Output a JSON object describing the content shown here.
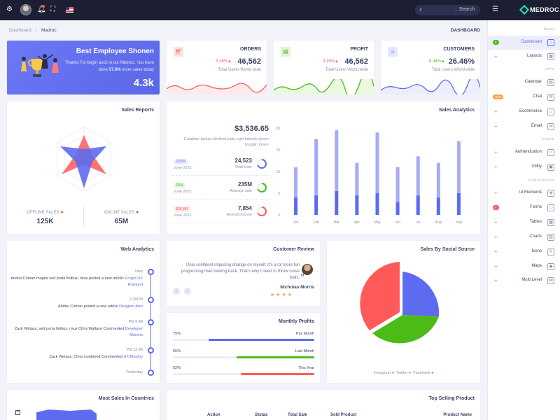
{
  "topbar": {
    "icons": [
      "gear-icon",
      "bell-icon",
      "fullscreen-icon",
      "menu-icon",
      "search-icon"
    ],
    "search_placeholder": "...Search",
    "brand": "MEDROC"
  },
  "sidebar": {
    "sections": {
      "menu": "MENU",
      "apps": "APPS",
      "pages": "PAGES",
      "components": "COMPONENTS"
    },
    "items": [
      {
        "label": "Dashboard",
        "badge": "5",
        "badge_color": "#4cbb17",
        "active": true
      },
      {
        "label": "Layouts"
      },
      {
        "label": "Calendar"
      },
      {
        "label": "Chat",
        "badge": "New",
        "badge_color": "#f7a33b"
      },
      {
        "label": "Ecommerce"
      },
      {
        "label": "Email"
      },
      {
        "label": "Authentication"
      },
      {
        "label": "Utility"
      },
      {
        "label": "UI Elements"
      },
      {
        "label": "Forms",
        "badge": "6",
        "badge_color": "#ff5a5a"
      },
      {
        "label": "Tables"
      },
      {
        "label": "Charts"
      },
      {
        "label": "Icons"
      },
      {
        "label": "Maps"
      },
      {
        "label": "Multi Level"
      }
    ]
  },
  "breadcrumb": {
    "root": "Dashboard",
    "current": "Madroc",
    "page_title": "DASHBOARD"
  },
  "hero": {
    "title": "Best Employee Shonen",
    "text_before": "Thanks For begin asch in our Medroc. You have done ",
    "highlight": "57.6%",
    "text_after": " more sales today",
    "value": "4.3k"
  },
  "stats": [
    {
      "title": "ORDERS",
      "pct": "3.16%",
      "value": "46,562",
      "sub": "Total Users World wide",
      "color": "#ff5a5a"
    },
    {
      "title": "PROFIT",
      "pct": "3.16%",
      "value": "46,562",
      "sub": "Total Users World wide",
      "color": "#4cbb17"
    },
    {
      "title": "CUSTOMERS",
      "pct": "8.34%",
      "value": "26.46%",
      "sub": "Total Users World wide",
      "color": "#5d6bf0"
    }
  ],
  "sales_reports": {
    "title": "Sales Reports",
    "offline_label": "OFFLINE SALES",
    "offline_value": "125K",
    "online_label": "ONLINE SALES",
    "online_value": "65M"
  },
  "sales_analytics": {
    "title": "Sales Analytics",
    "total": "$3,536.65",
    "desc": "Curabitur lacinia eleifend justo eget lobortis ipsum fougiat ornare",
    "rows": [
      {
        "badge": "2.65%",
        "date": "June 2021",
        "value": "24,523",
        "label": "Total User",
        "color": "#5d6bf0"
      },
      {
        "badge": "250k",
        "date": "June 2021",
        "value": "235M",
        "label": "Avarage sale",
        "color": "#4cbb17"
      },
      {
        "badge": "$38,580",
        "date": "June 2021",
        "value": "7,854",
        "label": "Annual income",
        "color": "#ff5a5a"
      }
    ]
  },
  "chart_data": {
    "type": "bar",
    "categories": [
      "Jan",
      "Feb",
      "Mar",
      "Apr",
      "May",
      "Jun",
      "Jul",
      "Aug",
      "Sep"
    ],
    "series": [
      {
        "values": [
          4,
          4.5,
          5.5,
          4.5,
          5,
          3,
          4.5,
          4,
          5
        ]
      },
      {
        "values": [
          7,
          13,
          14,
          7.5,
          14,
          8,
          9,
          8,
          12
        ]
      }
    ],
    "ylim": [
      0,
      20
    ],
    "yticks": [
      "0",
      "5",
      "10",
      "15",
      "20"
    ]
  },
  "web_analytics": {
    "title": "Web Analytics",
    "items": [
      {
        "time": "Now",
        "text": "Andrei Coman magna sed porta finibus, risus posted a new article:",
        "link": "Forget UX Rowland"
      },
      {
        "time": "2:30PM",
        "text": "Andrei Coman posted a new article",
        "link": "Designer Alex"
      },
      {
        "time": "PM 5:48",
        "text": "Zack Wetass, sed porta finibus, risus Chris Wallace Commented",
        "link": "Developer Moreno"
      },
      {
        "time": "PM 12:48",
        "text": "Zack Wetass, Chris combined Commented",
        "link": "UX Murphy"
      },
      {
        "time": "Yesterday",
        "text": "",
        "link": ""
      }
    ]
  },
  "customer_review": {
    "title": "Customer Review",
    "quote": "I feel confident imposing change on myself. It's a lot more fun progressing than looking back. That's why I need to throw curve balls.",
    "name": "Nicholas Morris",
    "stars": 4
  },
  "monthly_profits": {
    "title": "Monthly Profits",
    "rows": [
      {
        "pct": "75%",
        "label": "This Month",
        "value": 0.75,
        "color": "#5d6bf0"
      },
      {
        "pct": "55%",
        "label": "Last Month",
        "value": 0.55,
        "color": "#4cbb17"
      },
      {
        "pct": "52%",
        "label": "This Year",
        "value": 0.52,
        "color": "#ff5a5a"
      }
    ]
  },
  "social": {
    "title": "Sales By Social Source",
    "legend": [
      {
        "name": "Instagram",
        "color": "#ff5a5a"
      },
      {
        "name": "Twitter",
        "color": "#4cbb17"
      },
      {
        "name": "Facebook",
        "color": "#5d6bf0"
      }
    ]
  },
  "countries": {
    "title": "Most Sales In Countries"
  },
  "top_selling": {
    "title": "Top Selling Product",
    "columns": [
      "Action",
      "Stutas",
      "Total Sale",
      "Sold Product",
      "Product Name"
    ]
  }
}
